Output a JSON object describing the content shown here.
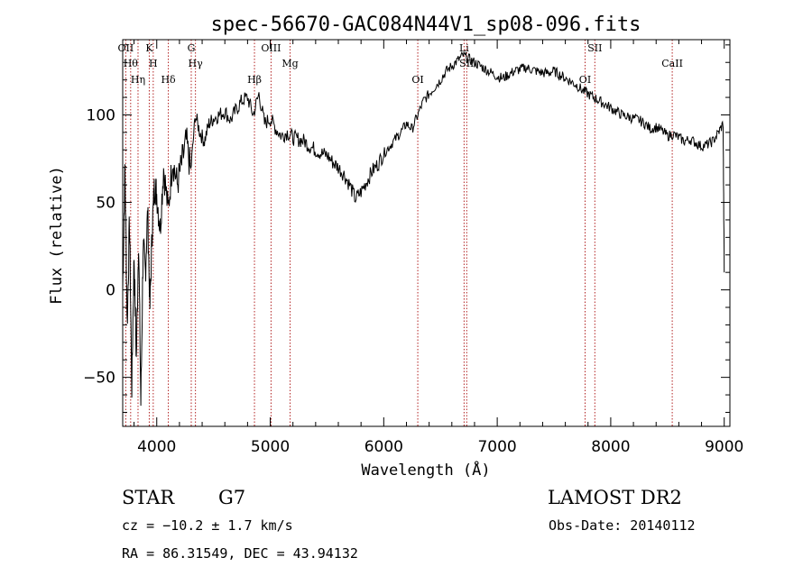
{
  "title": "spec-56670-GAC084N44V1_sp08-096.fits",
  "chart_data": {
    "type": "line",
    "xlabel": "Wavelength (Å)",
    "ylabel": "Flux (relative)",
    "xlim": [
      3700,
      9050
    ],
    "ylim": [
      -78,
      143
    ],
    "x_ticks": [
      4000,
      5000,
      6000,
      7000,
      8000,
      9000
    ],
    "y_ticks": [
      -50,
      0,
      50,
      100
    ],
    "series": [
      {
        "x": [
          3700,
          3720,
          3740,
          3760,
          3780,
          3800,
          3820,
          3840,
          3860,
          3880,
          3900,
          3920,
          3940,
          3960,
          3980,
          4000,
          4030,
          4060,
          4100,
          4140,
          4180,
          4220,
          4260,
          4300,
          4340,
          4380,
          4420,
          4460,
          4500,
          4550,
          4600,
          4650,
          4700,
          4750,
          4800,
          4850,
          4900,
          4950,
          5000,
          5050,
          5100,
          5150,
          5200,
          5250,
          5300,
          5350,
          5400,
          5450,
          5500,
          5550,
          5600,
          5650,
          5700,
          5750,
          5800,
          5850,
          5900,
          5950,
          6000,
          6050,
          6100,
          6150,
          6200,
          6250,
          6300,
          6350,
          6400,
          6450,
          6500,
          6550,
          6600,
          6650,
          6700,
          6750,
          6800,
          6850,
          6900,
          6950,
          7000,
          7050,
          7100,
          7150,
          7200,
          7250,
          7300,
          7350,
          7400,
          7450,
          7500,
          7550,
          7600,
          7650,
          7700,
          7750,
          7800,
          7850,
          7900,
          7950,
          8000,
          8050,
          8100,
          8150,
          8200,
          8250,
          8300,
          8350,
          8400,
          8450,
          8500,
          8550,
          8600,
          8650,
          8700,
          8750,
          8800,
          8850,
          8900,
          8950,
          8990,
          9000
        ],
        "y": [
          0,
          70,
          -20,
          40,
          -55,
          20,
          -40,
          30,
          -65,
          25,
          10,
          45,
          -10,
          35,
          60,
          55,
          35,
          70,
          45,
          75,
          60,
          72,
          85,
          68,
          100,
          90,
          85,
          95,
          98,
          100,
          102,
          97,
          103,
          108,
          110,
          100,
          112,
          95,
          98,
          92,
          88,
          90,
          87,
          86,
          85,
          82,
          80,
          78,
          77,
          73,
          70,
          66,
          60,
          52,
          56,
          62,
          68,
          72,
          78,
          82,
          86,
          90,
          95,
          92,
          100,
          108,
          112,
          116,
          120,
          125,
          128,
          131,
          134,
          132,
          130,
          128,
          126,
          124,
          122,
          121,
          123,
          125,
          126,
          127,
          126,
          125,
          124,
          124,
          125,
          123,
          121,
          119,
          117,
          114,
          112,
          110,
          108,
          106,
          104,
          102,
          100,
          99,
          98,
          97,
          95,
          92,
          93,
          91,
          88,
          89,
          87,
          85,
          86,
          84,
          82,
          83,
          85,
          90,
          95,
          10
        ]
      }
    ],
    "lines": [
      {
        "x": 3727,
        "labels": [
          "OII"
        ]
      },
      {
        "x": 3770,
        "labels": [
          "Hθ"
        ]
      },
      {
        "x": 3835,
        "labels": [
          "Hη"
        ]
      },
      {
        "x": 3934,
        "labels": [
          "K"
        ]
      },
      {
        "x": 3969,
        "labels": [
          "H"
        ]
      },
      {
        "x": 4102,
        "labels": [
          "Hδ"
        ]
      },
      {
        "x": 4304,
        "labels": [
          "G"
        ]
      },
      {
        "x": 4341,
        "labels": [
          "Hγ"
        ]
      },
      {
        "x": 4861,
        "labels": [
          "Hβ"
        ]
      },
      {
        "x": 5007,
        "labels": [
          "OIII"
        ]
      },
      {
        "x": 5175,
        "labels": [
          "Mg"
        ]
      },
      {
        "x": 6300,
        "labels": [
          "OI"
        ]
      },
      {
        "x": 6708,
        "labels": [
          "Li"
        ]
      },
      {
        "x": 6731,
        "labels": [
          "SII"
        ]
      },
      {
        "x": 7774,
        "labels": [
          "OI"
        ]
      },
      {
        "x": 7860,
        "labels": [
          "SII"
        ]
      },
      {
        "x": 8542,
        "labels": [
          "CaII"
        ]
      }
    ]
  },
  "footer": {
    "class_label": "STAR",
    "subclass_label": "G7",
    "survey_label": "LAMOST DR2",
    "cz": "cz = −10.2 ± 1.7 km/s",
    "obs_date": "Obs-Date: 20140112",
    "ra_dec": "RA =  86.31549, DEC =  43.94132"
  }
}
